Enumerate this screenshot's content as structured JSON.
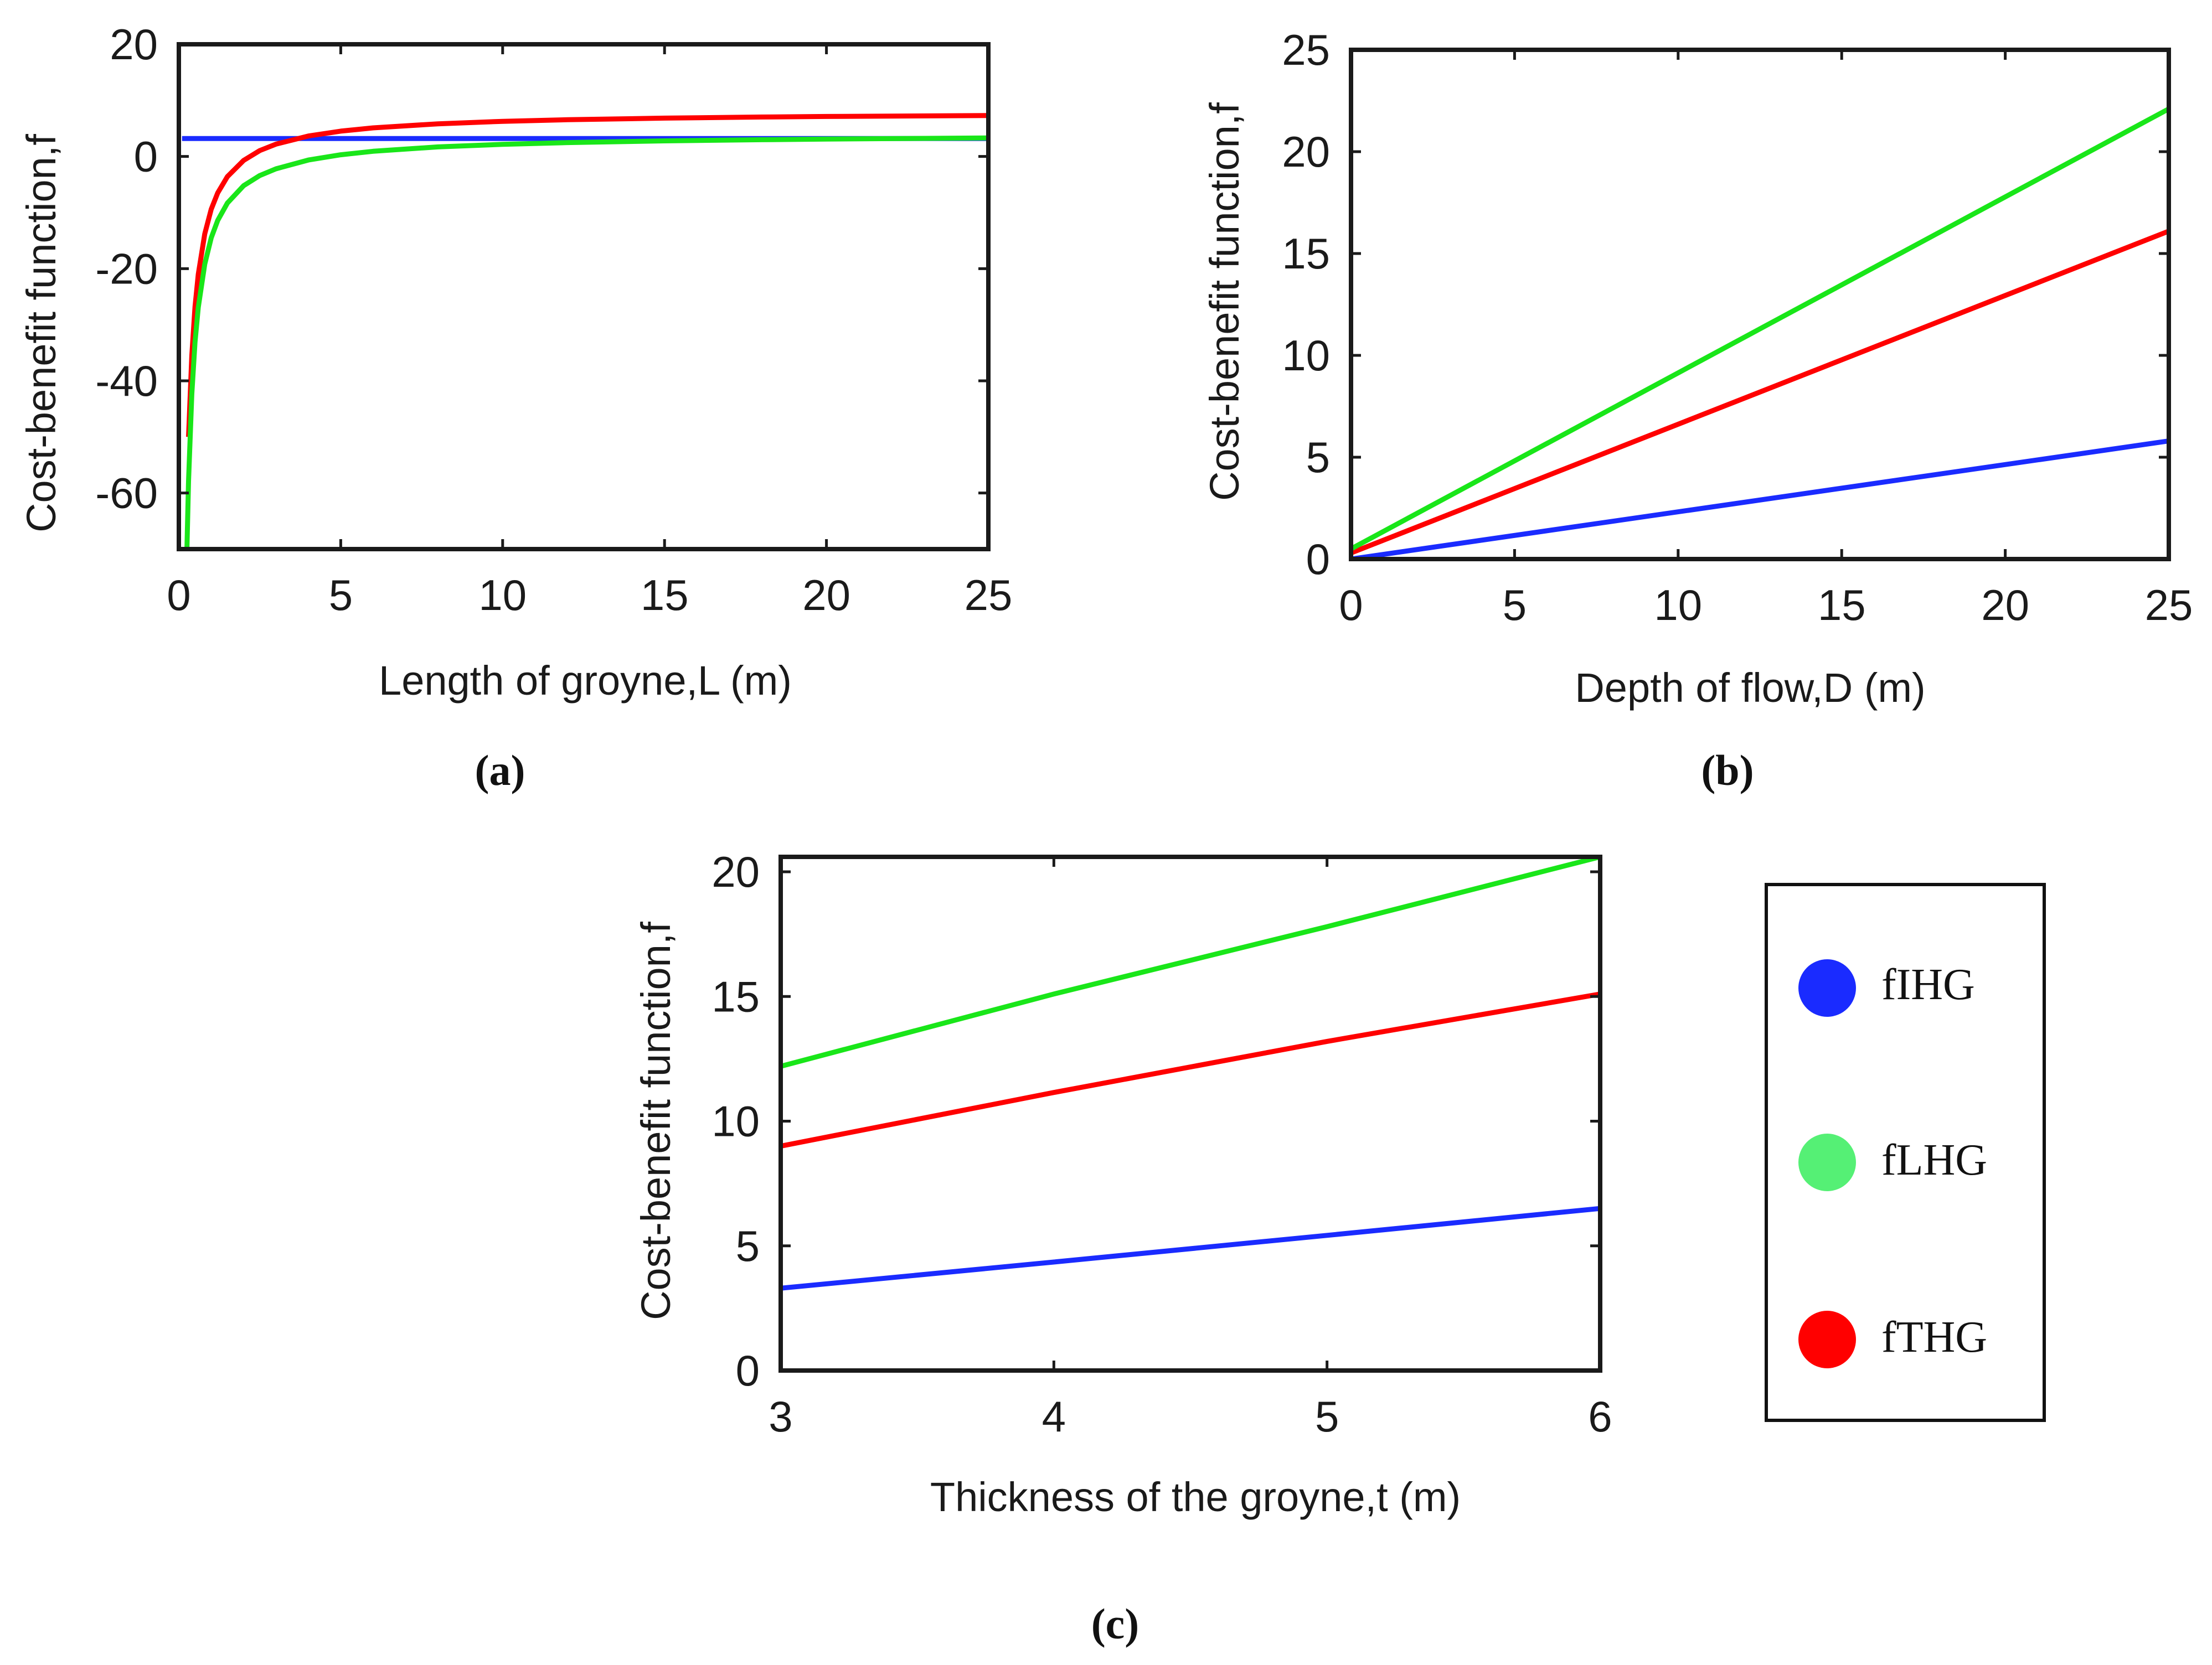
{
  "chart_data": [
    {
      "id": "a",
      "type": "line",
      "caption": "(a)",
      "xlabel": "Length of groyne,L (m)",
      "ylabel": "Cost-benefit function,f",
      "xlim": [
        0,
        25
      ],
      "ylim": [
        -70,
        20
      ],
      "xticks": [
        0,
        5,
        10,
        15,
        20,
        25
      ],
      "yticks": [
        -60,
        -40,
        -20,
        0,
        20
      ],
      "grid": false,
      "series": [
        {
          "name": "fIHG",
          "color": "#1a2bff",
          "x": [
            0.1,
            25
          ],
          "y": [
            3.2,
            3.2
          ]
        },
        {
          "name": "fTHG",
          "color": "#ff0000",
          "x": [
            0.3,
            0.4,
            0.5,
            0.6,
            0.8,
            1.0,
            1.2,
            1.5,
            2.0,
            2.5,
            3,
            4,
            5,
            6,
            8,
            10,
            12,
            15,
            18,
            20,
            22,
            25
          ],
          "y": [
            -50,
            -35.5,
            -26.8,
            -21,
            -13.8,
            -9.4,
            -6.5,
            -3.6,
            -0.7,
            1.05,
            2.2,
            3.65,
            4.52,
            5.1,
            5.82,
            6.26,
            6.55,
            6.84,
            7.03,
            7.13,
            7.2,
            7.3
          ]
        },
        {
          "name": "fLHG",
          "color": "#19e619",
          "x": [
            0.25,
            0.3,
            0.4,
            0.5,
            0.6,
            0.8,
            1.0,
            1.2,
            1.5,
            2.0,
            2.5,
            3,
            4,
            5,
            6,
            8,
            10,
            12,
            15,
            18,
            20,
            22,
            25
          ],
          "y": [
            -70,
            -57.9,
            -42.4,
            -33.1,
            -26.9,
            -19.2,
            -14.5,
            -11.4,
            -8.3,
            -5.2,
            -3.4,
            -2.2,
            -0.63,
            0.3,
            0.92,
            1.7,
            2.16,
            2.47,
            2.78,
            2.99,
            3.1,
            3.18,
            3.3
          ]
        }
      ]
    },
    {
      "id": "b",
      "type": "line",
      "caption": "(b)",
      "xlabel": "Depth of flow,D (m)",
      "ylabel": "Cost-benefit function,f",
      "xlim": [
        0,
        25
      ],
      "ylim": [
        0,
        25
      ],
      "xticks": [
        0,
        5,
        10,
        15,
        20,
        25
      ],
      "yticks": [
        0,
        5,
        10,
        15,
        20,
        25
      ],
      "grid": false,
      "series": [
        {
          "name": "fIHG",
          "color": "#1a2bff",
          "x": [
            0,
            25
          ],
          "y": [
            0,
            5.8
          ]
        },
        {
          "name": "fTHG",
          "color": "#ff0000",
          "x": [
            0,
            25
          ],
          "y": [
            0.3,
            16.1
          ]
        },
        {
          "name": "fLHG",
          "color": "#19e619",
          "x": [
            0,
            25
          ],
          "y": [
            0.5,
            22.1
          ]
        }
      ]
    },
    {
      "id": "c",
      "type": "line",
      "caption": "(c)",
      "xlabel": "Thickness of the groyne,t (m)",
      "ylabel": "Cost-benefit function,f",
      "xlim": [
        3,
        6
      ],
      "ylim": [
        0,
        20.6
      ],
      "xticks": [
        3,
        4,
        5,
        6
      ],
      "yticks": [
        0,
        5,
        10,
        15,
        20
      ],
      "grid": false,
      "series": [
        {
          "name": "fIHG",
          "color": "#1a2bff",
          "x": [
            3,
            4,
            5,
            6
          ],
          "y": [
            3.3,
            4.35,
            5.42,
            6.5
          ]
        },
        {
          "name": "fTHG",
          "color": "#ff0000",
          "x": [
            3,
            4,
            5,
            6
          ],
          "y": [
            9.0,
            11.15,
            13.2,
            15.1
          ]
        },
        {
          "name": "fLHG",
          "color": "#19e619",
          "x": [
            3,
            4,
            5,
            6
          ],
          "y": [
            12.2,
            15.1,
            17.8,
            20.6
          ]
        }
      ]
    }
  ],
  "legend": {
    "placement": "right of panel (c)",
    "items": [
      {
        "label": "fIHG",
        "color": "#1a2bff",
        "name": "fIHG"
      },
      {
        "label": "fLHG",
        "color": "#55f075",
        "name": "fLHG"
      },
      {
        "label": "fTHG",
        "color": "#ff0000",
        "name": "fTHG"
      }
    ]
  }
}
